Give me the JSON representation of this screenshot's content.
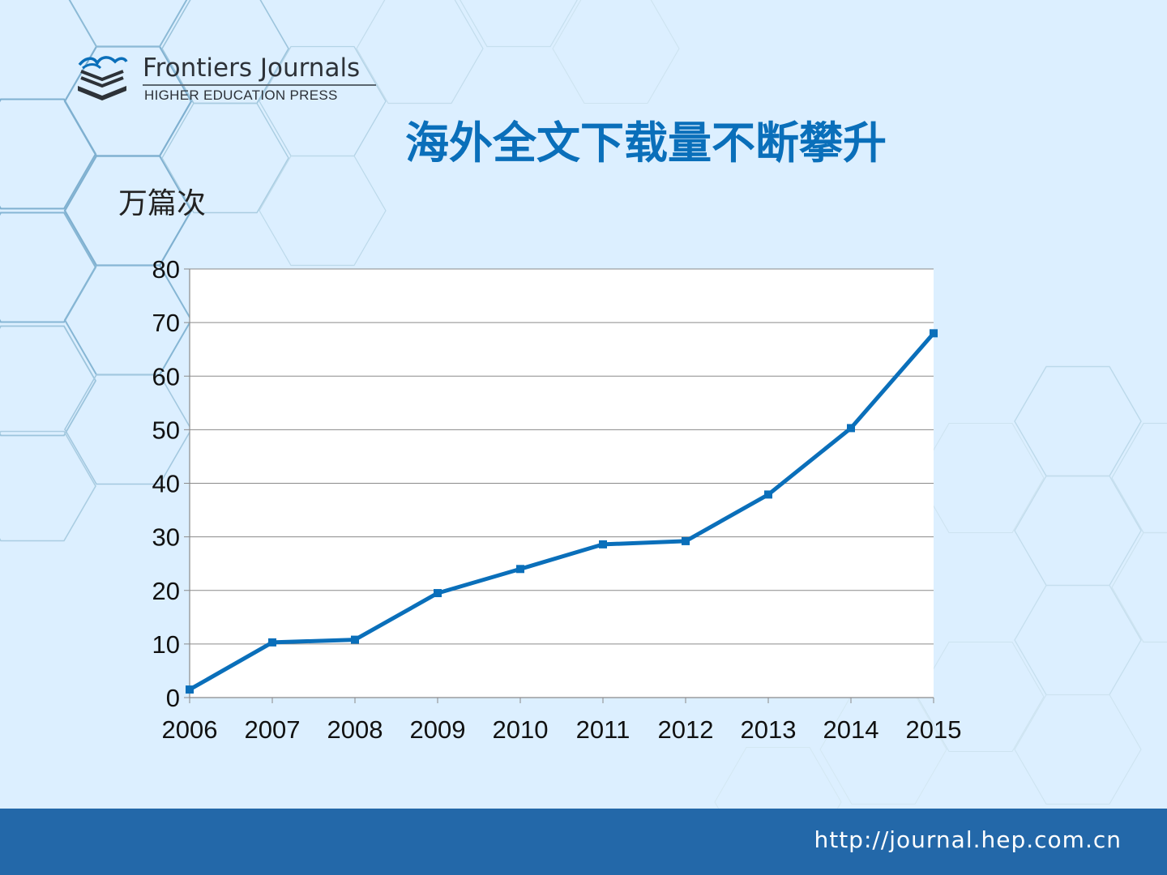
{
  "logo": {
    "name": "Frontiers Journals",
    "subtitle": "HIGHER EDUCATION PRESS"
  },
  "slide": {
    "title": "海外全文下载量不断攀升",
    "unit_label": "万篇次"
  },
  "footer": {
    "url": "http://journal.hep.com.cn"
  },
  "colors": {
    "accent": "#0a6fba",
    "footer": "#2368a9",
    "background": "#dcefff"
  },
  "chart_data": {
    "type": "line",
    "x": [
      "2006",
      "2007",
      "2008",
      "2009",
      "2010",
      "2011",
      "2012",
      "2013",
      "2014",
      "2015"
    ],
    "series": [
      {
        "values": [
          1.5,
          10.3,
          10.8,
          19.5,
          24.0,
          28.6,
          29.2,
          37.9,
          50.3,
          68.0
        ]
      }
    ],
    "ylim": [
      0,
      80
    ],
    "yticks": [
      0,
      10,
      20,
      30,
      40,
      50,
      60,
      70,
      80
    ],
    "grid": true,
    "legend": "none",
    "marker": "square",
    "color": "#0a6fba"
  }
}
